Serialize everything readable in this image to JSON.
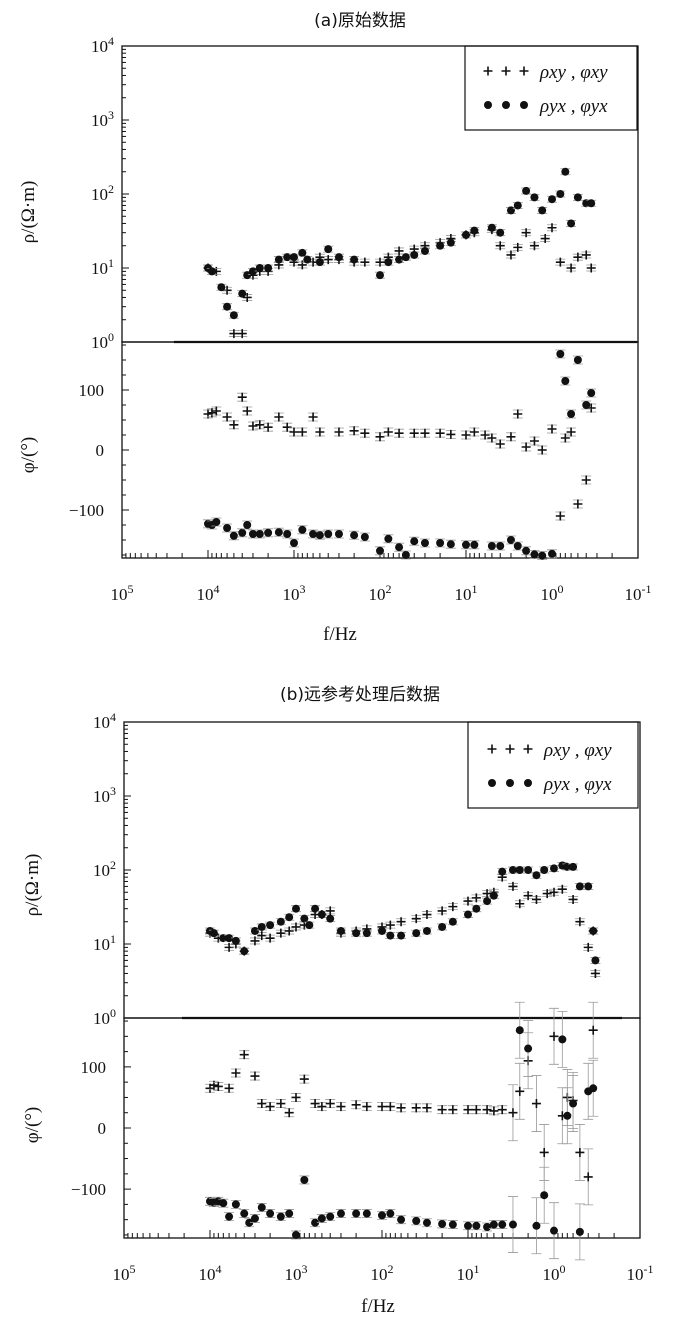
{
  "chart_data": [
    {
      "type": "scatter",
      "title": "(a)原始数据",
      "xlabel": "f/Hz",
      "x_scale": "log",
      "x_reversed": true,
      "xlim": [
        100000,
        0.1
      ],
      "x_tick_labels": [
        "10^5",
        "10^4",
        "10^3",
        "10^2",
        "10^1",
        "10^0",
        "10^-1"
      ],
      "subplots": [
        {
          "ylabel": "ρ/(Ω·m)",
          "y_scale": "log",
          "ylim": [
            1,
            10000
          ],
          "y_tick_labels": [
            "10^0",
            "10^1",
            "10^2",
            "10^3",
            "10^4"
          ],
          "legend": [
            "ρxy , φxy",
            "ρyx , φyx"
          ],
          "legend_position": "top-right",
          "series": [
            {
              "name": "ρxy",
              "marker": "plus",
              "x": [
                10000,
                8000,
                6000,
                5000,
                4000,
                3500,
                3000,
                2500,
                2000,
                1500,
                1000,
                800,
                600,
                500,
                400,
                300,
                200,
                150,
                100,
                80,
                60,
                40,
                30,
                20,
                15,
                10,
                8,
                5,
                4,
                3,
                2.5,
                2,
                1.6,
                1.2,
                1,
                0.8,
                0.6,
                0.5,
                0.4,
                0.35
              ],
              "y": [
                10,
                9,
                5,
                1.3,
                1.3,
                4,
                8,
                9,
                9,
                11,
                12,
                11,
                12,
                14,
                13,
                13,
                12,
                12,
                12,
                14,
                17,
                18,
                20,
                22,
                25,
                28,
                30,
                33,
                20,
                15,
                19,
                30,
                20,
                25,
                35,
                12,
                10,
                14,
                15,
                10
              ]
            },
            {
              "name": "ρyx",
              "marker": "dot",
              "x": [
                10000,
                9000,
                7000,
                6000,
                5000,
                4000,
                3500,
                3000,
                2500,
                2000,
                1500,
                1200,
                1000,
                800,
                700,
                500,
                400,
                300,
                200,
                100,
                80,
                60,
                50,
                40,
                30,
                20,
                15,
                10,
                8,
                5,
                4,
                3,
                2.5,
                2,
                1.6,
                1.3,
                1,
                0.8,
                0.7,
                0.6,
                0.5,
                0.4,
                0.35
              ],
              "y": [
                10,
                9,
                5.5,
                3,
                2.3,
                4.5,
                8,
                9,
                10,
                10,
                13,
                14,
                14,
                16,
                13,
                12,
                18,
                14,
                13,
                8,
                12,
                13,
                14,
                15,
                17,
                20,
                22,
                28,
                32,
                35,
                30,
                60,
                70,
                110,
                90,
                60,
                85,
                100,
                200,
                40,
                90,
                75,
                75
              ]
            }
          ]
        },
        {
          "ylabel": "φ/(°)",
          "y_scale": "linear",
          "ylim": [
            -180,
            180
          ],
          "y_tick_labels": [
            "-100",
            "0",
            "100"
          ],
          "series": [
            {
              "name": "φxy",
              "marker": "plus",
              "x": [
                10000,
                9000,
                8000,
                6000,
                5000,
                4000,
                3500,
                3000,
                2500,
                2000,
                1500,
                1200,
                1000,
                800,
                600,
                500,
                300,
                200,
                150,
                100,
                80,
                60,
                40,
                30,
                20,
                15,
                10,
                8,
                6,
                5,
                4,
                3,
                2.5,
                2,
                1.6,
                1.3,
                1,
                0.8,
                0.7,
                0.6,
                0.5,
                0.4,
                0.35
              ],
              "y": [
                60,
                62,
                65,
                55,
                42,
                88,
                65,
                40,
                42,
                38,
                55,
                38,
                30,
                30,
                55,
                30,
                30,
                32,
                28,
                22,
                30,
                28,
                28,
                28,
                28,
                26,
                25,
                30,
                25,
                20,
                10,
                22,
                60,
                5,
                15,
                0,
                35,
                -110,
                20,
                30,
                -90,
                -50,
                70
              ]
            },
            {
              "name": "φyx",
              "marker": "dot",
              "x": [
                10000,
                9000,
                8000,
                6000,
                5000,
                4000,
                3500,
                3000,
                2500,
                2000,
                1500,
                1200,
                1000,
                800,
                600,
                500,
                400,
                300,
                200,
                150,
                100,
                80,
                60,
                50,
                40,
                30,
                20,
                15,
                10,
                8,
                5,
                4,
                3,
                2.5,
                2,
                1.6,
                1.3,
                1,
                0.8,
                0.7,
                0.6,
                0.5,
                0.4,
                0.35
              ],
              "y": [
                -123,
                -125,
                -120,
                -130,
                -143,
                -138,
                -125,
                -140,
                -140,
                -138,
                -137,
                -140,
                -155,
                -133,
                -140,
                -142,
                -140,
                -140,
                -142,
                -145,
                -168,
                -148,
                -162,
                -175,
                -152,
                -155,
                -155,
                -157,
                -158,
                -158,
                -160,
                -160,
                -150,
                -160,
                -168,
                -174,
                -176,
                -173,
                160,
                115,
                60,
                150,
                75,
                95
              ]
            }
          ]
        }
      ]
    },
    {
      "type": "scatter",
      "title": "(b)远参考处理后数据",
      "xlabel": "f/Hz",
      "x_scale": "log",
      "x_reversed": true,
      "xlim": [
        100000,
        0.1
      ],
      "x_tick_labels": [
        "10^5",
        "10^4",
        "10^3",
        "10^2",
        "10^1",
        "10^0",
        "10^-1"
      ],
      "subplots": [
        {
          "ylabel": "ρ/(Ω·m)",
          "y_scale": "log",
          "ylim": [
            1,
            10000
          ],
          "y_tick_labels": [
            "10^0",
            "10^1",
            "10^2",
            "10^3",
            "10^4"
          ],
          "legend": [
            "ρxy , φxy",
            "ρyx , φyx"
          ],
          "legend_position": "top-right",
          "series": [
            {
              "name": "ρxy",
              "marker": "plus",
              "x": [
                10000,
                8000,
                6000,
                5000,
                4000,
                3000,
                2500,
                2000,
                1500,
                1200,
                1000,
                800,
                600,
                500,
                400,
                300,
                200,
                150,
                100,
                80,
                60,
                40,
                30,
                20,
                15,
                10,
                8,
                6,
                5,
                4,
                3,
                2.5,
                2,
                1.6,
                1.2,
                1,
                0.8,
                0.6,
                0.5,
                0.4,
                0.35,
                0.33
              ],
              "y": [
                14,
                12,
                9,
                10,
                8,
                11,
                13,
                12,
                14,
                15,
                17,
                18,
                25,
                25,
                28,
                14,
                15,
                16,
                17,
                18,
                20,
                22,
                25,
                28,
                32,
                38,
                42,
                48,
                50,
                80,
                60,
                35,
                45,
                40,
                48,
                50,
                55,
                40,
                20,
                9,
                15,
                4
              ]
            },
            {
              "name": "ρyx",
              "marker": "dot",
              "x": [
                10000,
                9000,
                7000,
                6000,
                5000,
                4000,
                3000,
                2500,
                2000,
                1500,
                1200,
                1000,
                800,
                700,
                600,
                500,
                400,
                300,
                200,
                150,
                100,
                80,
                60,
                40,
                30,
                20,
                15,
                10,
                8,
                6,
                5,
                4,
                3,
                2.5,
                2,
                1.6,
                1.3,
                1,
                0.8,
                0.7,
                0.6,
                0.5,
                0.4,
                0.35,
                0.33
              ],
              "y": [
                15,
                14,
                12,
                12,
                11,
                8,
                15,
                17,
                18,
                20,
                23,
                30,
                22,
                18,
                30,
                25,
                22,
                15,
                14,
                14,
                15,
                13,
                13,
                14,
                15,
                17,
                20,
                25,
                30,
                38,
                45,
                95,
                100,
                100,
                100,
                85,
                100,
                105,
                115,
                110,
                110,
                60,
                60,
                15,
                6
              ]
            }
          ]
        },
        {
          "ylabel": "φ/(°)",
          "y_scale": "linear",
          "ylim": [
            -180,
            180
          ],
          "y_tick_labels": [
            "-100",
            "0",
            "100"
          ],
          "series": [
            {
              "name": "φxy",
              "marker": "plus",
              "x": [
                10000,
                9000,
                8000,
                6000,
                5000,
                4000,
                3000,
                2500,
                2000,
                1500,
                1200,
                1000,
                800,
                600,
                500,
                400,
                300,
                200,
                150,
                100,
                80,
                60,
                40,
                30,
                20,
                15,
                10,
                8,
                6,
                5,
                4,
                3,
                2.5,
                2,
                1.6,
                1.3,
                1,
                0.8,
                0.7,
                0.6,
                0.5,
                0.4,
                0.35
              ],
              "y": [
                65,
                70,
                68,
                65,
                90,
                120,
                85,
                40,
                35,
                40,
                25,
                50,
                80,
                40,
                35,
                40,
                35,
                38,
                35,
                35,
                35,
                33,
                33,
                33,
                30,
                30,
                30,
                30,
                30,
                28,
                30,
                25,
                60,
                110,
                40,
                -40,
                150,
                20,
                50,
                45,
                -40,
                -80,
                160
              ]
            },
            {
              "name": "φyx",
              "marker": "dot",
              "x": [
                10000,
                9000,
                8000,
                7000,
                6000,
                5000,
                4000,
                3500,
                3000,
                2500,
                2000,
                1500,
                1200,
                1000,
                800,
                600,
                500,
                400,
                300,
                200,
                150,
                100,
                80,
                60,
                40,
                30,
                20,
                15,
                10,
                8,
                6,
                5,
                4,
                3,
                2.5,
                2,
                1.6,
                1.3,
                1,
                0.8,
                0.7,
                0.6,
                0.5,
                0.4,
                0.35
              ],
              "y": [
                -120,
                -122,
                -120,
                -123,
                -145,
                -125,
                -140,
                -155,
                -148,
                -130,
                -140,
                -145,
                -140,
                -175,
                -85,
                -155,
                -148,
                -145,
                -140,
                -140,
                -140,
                -143,
                -140,
                -150,
                -152,
                -155,
                -157,
                -158,
                -160,
                -160,
                -162,
                -158,
                -158,
                -158,
                160,
                130,
                -160,
                -110,
                -168,
                145,
                20,
                40,
                -170,
                60,
                65
              ]
            }
          ]
        }
      ]
    }
  ]
}
